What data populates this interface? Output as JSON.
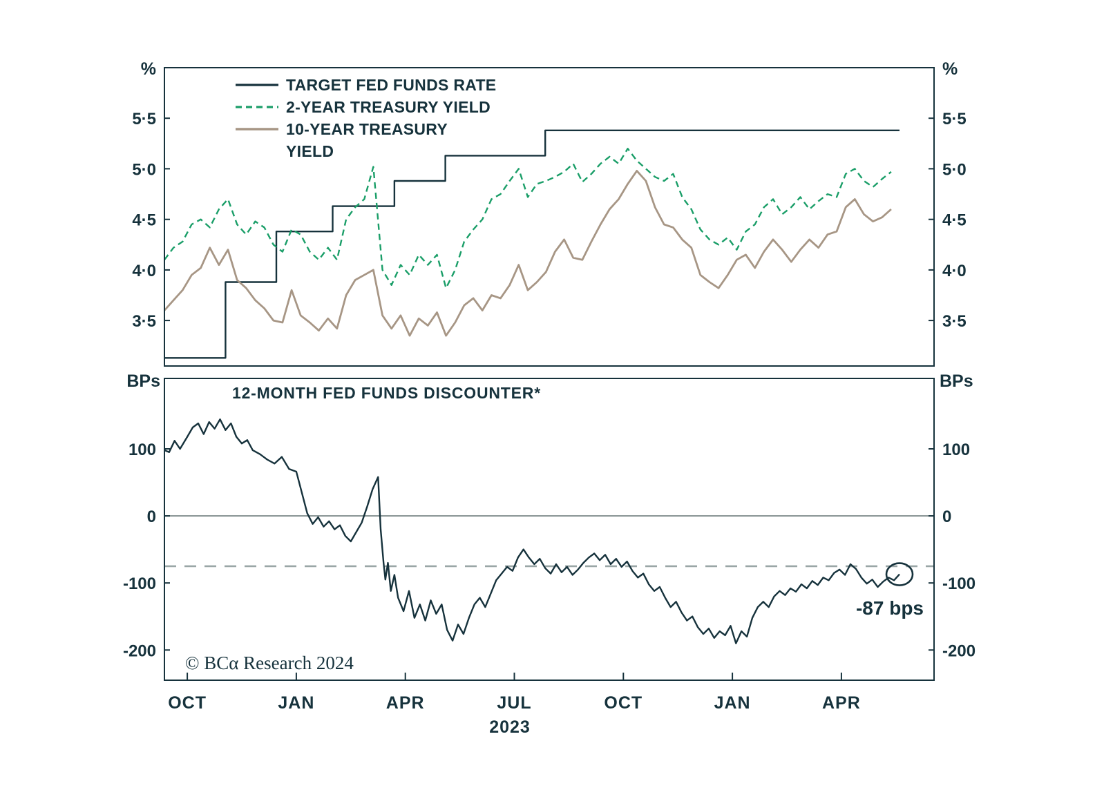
{
  "colors": {
    "axis": "#16323c",
    "fed_funds": "#16323c",
    "two_year": "#1a9e68",
    "ten_year": "#a79685",
    "discounter": "#16323c",
    "annotation_red": "#cc2229",
    "copyright_green": "#2fae7e",
    "zero_line": "#6b7a7a",
    "dashed_ref": "#9aa6a6"
  },
  "top_panel": {
    "unit_left": "%",
    "unit_right": "%",
    "y_ticks": [
      {
        "value": 5.5,
        "label": "5·5"
      },
      {
        "value": 5.0,
        "label": "5·0"
      },
      {
        "value": 4.5,
        "label": "4·5"
      },
      {
        "value": 4.0,
        "label": "4·0"
      },
      {
        "value": 3.5,
        "label": "3·5"
      }
    ],
    "legend": [
      {
        "line1": "TARGET FED FUNDS RATE",
        "line2": ""
      },
      {
        "line1": "2-YEAR TREASURY YIELD",
        "line2": ""
      },
      {
        "line1": "10-YEAR TREASURY",
        "line2": "YIELD"
      }
    ]
  },
  "bottom_panel": {
    "unit_left": "BPs",
    "unit_right": "BPs",
    "title": "12-MONTH FED FUNDS DISCOUNTER*",
    "y_ticks": [
      {
        "value": 100,
        "label": "100"
      },
      {
        "value": 0,
        "label": "0"
      },
      {
        "value": -100,
        "label": "-100"
      },
      {
        "value": -200,
        "label": "-200"
      }
    ]
  },
  "x_axis": {
    "ticks": [
      {
        "t": 0,
        "label": "OCT"
      },
      {
        "t": 3,
        "label": "JAN"
      },
      {
        "t": 6,
        "label": "APR"
      },
      {
        "t": 9,
        "label": "JUL"
      },
      {
        "t": 12,
        "label": "OCT"
      },
      {
        "t": 15,
        "label": "JAN"
      },
      {
        "t": 18,
        "label": "APR"
      }
    ],
    "year_label": "2023"
  },
  "copyright": "© BCα Research 2024",
  "chart_data": [
    {
      "type": "line",
      "title": "",
      "xlabel": "2023",
      "ylabel": "%",
      "x_unit": "months since Oct 1, 2022",
      "xlim": [
        -0.63,
        20.55
      ],
      "ylim": [
        3.05,
        6.0
      ],
      "grid": false,
      "legend_position": "top-left",
      "series": [
        {
          "id": "target_fed_funds_rate",
          "name": "TARGET FED FUNDS RATE",
          "color": "#16323c",
          "width": 2.4,
          "dash": null,
          "step": true,
          "points": [
            [
              -0.63,
              3.13
            ],
            [
              1.05,
              3.13
            ],
            [
              1.05,
              3.88
            ],
            [
              2.45,
              3.88
            ],
            [
              2.45,
              4.38
            ],
            [
              4.0,
              4.38
            ],
            [
              4.0,
              4.63
            ],
            [
              5.7,
              4.63
            ],
            [
              5.7,
              4.88
            ],
            [
              7.1,
              4.88
            ],
            [
              7.1,
              5.13
            ],
            [
              9.85,
              5.13
            ],
            [
              9.85,
              5.38
            ],
            [
              19.6,
              5.38
            ]
          ]
        },
        {
          "id": "two_year_treasury_yield",
          "name": "2-YEAR TREASURY YIELD",
          "color": "#1a9e68",
          "width": 2.4,
          "dash": [
            9,
            6
          ],
          "start": -0.63,
          "interval": 0.25,
          "values": [
            4.1,
            4.22,
            4.28,
            4.45,
            4.5,
            4.42,
            4.6,
            4.7,
            4.45,
            4.35,
            4.48,
            4.42,
            4.25,
            4.18,
            4.4,
            4.35,
            4.18,
            4.1,
            4.22,
            4.1,
            4.5,
            4.62,
            4.7,
            5.02,
            4.0,
            3.85,
            4.05,
            3.95,
            4.15,
            4.05,
            4.15,
            3.82,
            4.0,
            4.28,
            4.4,
            4.5,
            4.7,
            4.75,
            4.88,
            5.0,
            4.72,
            4.85,
            4.88,
            4.92,
            4.97,
            5.05,
            4.87,
            4.95,
            5.05,
            5.12,
            5.05,
            5.2,
            5.08,
            5.0,
            4.92,
            4.88,
            4.95,
            4.72,
            4.6,
            4.4,
            4.3,
            4.25,
            4.32,
            4.2,
            4.38,
            4.45,
            4.62,
            4.7,
            4.55,
            4.62,
            4.72,
            4.6,
            4.68,
            4.75,
            4.72,
            4.95,
            5.0,
            4.88,
            4.82,
            4.9,
            4.97
          ]
        },
        {
          "id": "ten_year_treasury_yield",
          "name": "10-YEAR TREASURY YIELD",
          "color": "#a79685",
          "width": 2.8,
          "dash": null,
          "start": -0.63,
          "interval": 0.25,
          "values": [
            3.6,
            3.7,
            3.8,
            3.95,
            4.02,
            4.22,
            4.05,
            4.2,
            3.9,
            3.82,
            3.7,
            3.62,
            3.5,
            3.48,
            3.8,
            3.55,
            3.48,
            3.4,
            3.52,
            3.42,
            3.75,
            3.9,
            3.95,
            4.0,
            3.55,
            3.42,
            3.55,
            3.35,
            3.52,
            3.45,
            3.58,
            3.35,
            3.48,
            3.65,
            3.72,
            3.6,
            3.75,
            3.72,
            3.85,
            4.05,
            3.8,
            3.88,
            3.98,
            4.18,
            4.3,
            4.12,
            4.1,
            4.28,
            4.45,
            4.6,
            4.7,
            4.85,
            4.98,
            4.88,
            4.62,
            4.45,
            4.42,
            4.3,
            4.22,
            3.95,
            3.88,
            3.82,
            3.95,
            4.1,
            4.15,
            4.02,
            4.18,
            4.3,
            4.2,
            4.08,
            4.2,
            4.3,
            4.22,
            4.35,
            4.38,
            4.62,
            4.7,
            4.55,
            4.48,
            4.52,
            4.6
          ]
        }
      ]
    },
    {
      "type": "line",
      "title": "12-MONTH FED FUNDS DISCOUNTER*",
      "xlabel": "2023",
      "ylabel": "BPs",
      "x_unit": "months since Oct 1, 2022",
      "xlim": [
        -0.63,
        20.55
      ],
      "ylim": [
        -245,
        205
      ],
      "grid": false,
      "reference_lines": [
        {
          "value": 0,
          "style": "solid",
          "color": "#6b7a7a"
        },
        {
          "value": -75,
          "style": "dashed",
          "color": "#9aa6a6"
        }
      ],
      "annotation": {
        "text": "-87 bps",
        "t": 19.6,
        "value": -87
      },
      "series": [
        {
          "id": "fed_funds_discounter",
          "name": "12-MONTH FED FUNDS DISCOUNTER",
          "color": "#16323c",
          "width": 2.4,
          "dash": null,
          "points": [
            [
              -0.63,
              98
            ],
            [
              -0.5,
              95
            ],
            [
              -0.35,
              112
            ],
            [
              -0.2,
              100
            ],
            [
              0.0,
              118
            ],
            [
              0.15,
              132
            ],
            [
              0.3,
              138
            ],
            [
              0.45,
              122
            ],
            [
              0.6,
              140
            ],
            [
              0.75,
              130
            ],
            [
              0.9,
              144
            ],
            [
              1.05,
              128
            ],
            [
              1.2,
              138
            ],
            [
              1.35,
              118
            ],
            [
              1.5,
              108
            ],
            [
              1.65,
              113
            ],
            [
              1.8,
              98
            ],
            [
              2.0,
              92
            ],
            [
              2.2,
              84
            ],
            [
              2.4,
              78
            ],
            [
              2.6,
              88
            ],
            [
              2.8,
              70
            ],
            [
              3.0,
              66
            ],
            [
              3.15,
              35
            ],
            [
              3.3,
              4
            ],
            [
              3.45,
              -12
            ],
            [
              3.6,
              -2
            ],
            [
              3.75,
              -16
            ],
            [
              3.9,
              -8
            ],
            [
              4.05,
              -20
            ],
            [
              4.2,
              -14
            ],
            [
              4.35,
              -30
            ],
            [
              4.5,
              -38
            ],
            [
              4.65,
              -24
            ],
            [
              4.8,
              -10
            ],
            [
              4.95,
              14
            ],
            [
              5.1,
              40
            ],
            [
              5.25,
              58
            ],
            [
              5.32,
              -20
            ],
            [
              5.4,
              -70
            ],
            [
              5.45,
              -95
            ],
            [
              5.52,
              -70
            ],
            [
              5.6,
              -112
            ],
            [
              5.7,
              -88
            ],
            [
              5.8,
              -122
            ],
            [
              5.95,
              -142
            ],
            [
              6.1,
              -112
            ],
            [
              6.25,
              -152
            ],
            [
              6.4,
              -132
            ],
            [
              6.55,
              -156
            ],
            [
              6.7,
              -126
            ],
            [
              6.85,
              -146
            ],
            [
              7.0,
              -132
            ],
            [
              7.15,
              -170
            ],
            [
              7.3,
              -186
            ],
            [
              7.45,
              -162
            ],
            [
              7.6,
              -176
            ],
            [
              7.75,
              -152
            ],
            [
              7.9,
              -132
            ],
            [
              8.05,
              -122
            ],
            [
              8.2,
              -136
            ],
            [
              8.35,
              -116
            ],
            [
              8.5,
              -96
            ],
            [
              8.65,
              -86
            ],
            [
              8.8,
              -76
            ],
            [
              8.95,
              -82
            ],
            [
              9.1,
              -62
            ],
            [
              9.25,
              -50
            ],
            [
              9.4,
              -62
            ],
            [
              9.55,
              -72
            ],
            [
              9.7,
              -64
            ],
            [
              9.85,
              -78
            ],
            [
              10.0,
              -86
            ],
            [
              10.15,
              -72
            ],
            [
              10.3,
              -84
            ],
            [
              10.45,
              -76
            ],
            [
              10.6,
              -88
            ],
            [
              10.75,
              -80
            ],
            [
              10.9,
              -70
            ],
            [
              11.05,
              -62
            ],
            [
              11.2,
              -56
            ],
            [
              11.35,
              -66
            ],
            [
              11.5,
              -58
            ],
            [
              11.65,
              -72
            ],
            [
              11.8,
              -64
            ],
            [
              11.95,
              -76
            ],
            [
              12.1,
              -68
            ],
            [
              12.25,
              -82
            ],
            [
              12.4,
              -92
            ],
            [
              12.55,
              -86
            ],
            [
              12.7,
              -102
            ],
            [
              12.85,
              -112
            ],
            [
              13.0,
              -106
            ],
            [
              13.15,
              -122
            ],
            [
              13.3,
              -136
            ],
            [
              13.45,
              -128
            ],
            [
              13.6,
              -144
            ],
            [
              13.75,
              -156
            ],
            [
              13.9,
              -150
            ],
            [
              14.05,
              -166
            ],
            [
              14.2,
              -176
            ],
            [
              14.35,
              -168
            ],
            [
              14.5,
              -182
            ],
            [
              14.65,
              -172
            ],
            [
              14.8,
              -178
            ],
            [
              14.95,
              -164
            ],
            [
              15.1,
              -190
            ],
            [
              15.25,
              -172
            ],
            [
              15.4,
              -180
            ],
            [
              15.55,
              -152
            ],
            [
              15.7,
              -136
            ],
            [
              15.85,
              -128
            ],
            [
              16.0,
              -136
            ],
            [
              16.15,
              -120
            ],
            [
              16.3,
              -112
            ],
            [
              16.45,
              -118
            ],
            [
              16.6,
              -108
            ],
            [
              16.75,
              -113
            ],
            [
              16.9,
              -102
            ],
            [
              17.05,
              -108
            ],
            [
              17.2,
              -97
            ],
            [
              17.35,
              -103
            ],
            [
              17.5,
              -92
            ],
            [
              17.65,
              -96
            ],
            [
              17.8,
              -85
            ],
            [
              17.95,
              -80
            ],
            [
              18.1,
              -88
            ],
            [
              18.25,
              -72
            ],
            [
              18.4,
              -79
            ],
            [
              18.55,
              -92
            ],
            [
              18.7,
              -101
            ],
            [
              18.85,
              -95
            ],
            [
              19.0,
              -106
            ],
            [
              19.15,
              -98
            ],
            [
              19.3,
              -92
            ],
            [
              19.45,
              -96
            ],
            [
              19.6,
              -87
            ]
          ]
        }
      ]
    }
  ]
}
